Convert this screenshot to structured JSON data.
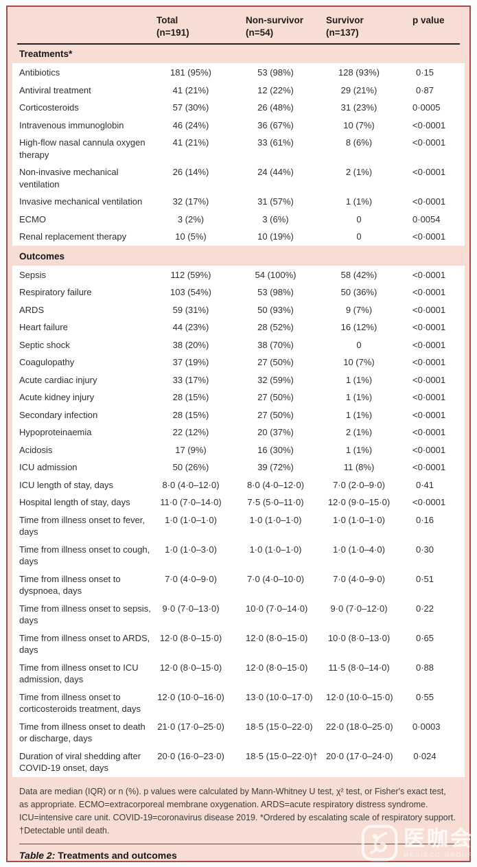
{
  "colors": {
    "frame_border": "#a64c44",
    "band_pink": "#f8ddd4",
    "body_bg": "#ffffff",
    "header_rule": "#20201e",
    "text": "#2e2e2e"
  },
  "table": {
    "columns": [
      {
        "label": "Total",
        "sub": "(n=191)"
      },
      {
        "label": "Non-survivor",
        "sub": "(n=54)"
      },
      {
        "label": "Survivor",
        "sub": "(n=137)"
      },
      {
        "label": "p value",
        "sub": ""
      }
    ],
    "sections": [
      {
        "title": "Treatments*",
        "rows": [
          {
            "label": "Antibiotics",
            "values": [
              "181 (95%)",
              "53 (98%)",
              "128 (93%)",
              "0·15"
            ]
          },
          {
            "label": "Antiviral treatment",
            "values": [
              "41 (21%)",
              "12 (22%)",
              "29 (21%)",
              "0·87"
            ]
          },
          {
            "label": "Corticosteroids",
            "values": [
              "57 (30%)",
              "26 (48%)",
              "31 (23%)",
              "0·0005"
            ]
          },
          {
            "label": "Intravenous immunoglobin",
            "values": [
              "46 (24%)",
              "36 (67%)",
              "10 (7%)",
              "<0·0001"
            ]
          },
          {
            "label": "High-flow nasal cannula oxygen therapy",
            "values": [
              "41 (21%)",
              "33 (61%)",
              "8 (6%)",
              "<0·0001"
            ]
          },
          {
            "label": "Non-invasive mechanical ventilation",
            "values": [
              "26 (14%)",
              "24 (44%)",
              "2 (1%)",
              "<0·0001"
            ]
          },
          {
            "label": "Invasive mechanical ventilation",
            "values": [
              "32 (17%)",
              "31 (57%)",
              "1 (1%)",
              "<0·0001"
            ]
          },
          {
            "label": "ECMO",
            "values": [
              "3 (2%)",
              "3 (6%)",
              "0",
              "0·0054"
            ]
          },
          {
            "label": "Renal replacement therapy",
            "values": [
              "10 (5%)",
              "10 (19%)",
              "0",
              "<0·0001"
            ]
          }
        ]
      },
      {
        "title": "Outcomes",
        "rows": [
          {
            "label": "Sepsis",
            "values": [
              "112 (59%)",
              "54 (100%)",
              "58 (42%)",
              "<0·0001"
            ]
          },
          {
            "label": "Respiratory failure",
            "values": [
              "103 (54%)",
              "53 (98%)",
              "50 (36%)",
              "<0·0001"
            ]
          },
          {
            "label": "ARDS",
            "values": [
              "59 (31%)",
              "50 (93%)",
              "9 (7%)",
              "<0·0001"
            ]
          },
          {
            "label": "Heart failure",
            "values": [
              "44 (23%)",
              "28 (52%)",
              "16 (12%)",
              "<0·0001"
            ]
          },
          {
            "label": "Septic shock",
            "values": [
              "38 (20%)",
              "38 (70%)",
              "0",
              "<0·0001"
            ]
          },
          {
            "label": "Coagulopathy",
            "values": [
              "37 (19%)",
              "27 (50%)",
              "10 (7%)",
              "<0·0001"
            ]
          },
          {
            "label": "Acute cardiac injury",
            "values": [
              "33 (17%)",
              "32 (59%)",
              "1 (1%)",
              "<0·0001"
            ]
          },
          {
            "label": "Acute kidney injury",
            "values": [
              "28 (15%)",
              "27 (50%)",
              "1 (1%)",
              "<0·0001"
            ]
          },
          {
            "label": "Secondary infection",
            "values": [
              "28 (15%)",
              "27 (50%)",
              "1 (1%)",
              "<0·0001"
            ]
          },
          {
            "label": "Hypoproteinaemia",
            "values": [
              "22 (12%)",
              "20 (37%)",
              "2 (1%)",
              "<0·0001"
            ]
          },
          {
            "label": "Acidosis",
            "values": [
              "17 (9%)",
              "16 (30%)",
              "1 (1%)",
              "<0·0001"
            ]
          },
          {
            "label": "ICU admission",
            "values": [
              "50 (26%)",
              "39 (72%)",
              "11 (8%)",
              "<0·0001"
            ]
          },
          {
            "label": "ICU length of stay, days",
            "values": [
              "8·0 (4·0–12·0)",
              "8·0 (4·0–12·0)",
              "7·0 (2·0–9·0)",
              "0·41"
            ]
          },
          {
            "label": "Hospital length of stay, days",
            "values": [
              "11·0 (7·0–14·0)",
              "7·5 (5·0–11·0)",
              "12·0 (9·0–15·0)",
              "<0·0001"
            ]
          },
          {
            "label": "Time from illness onset to fever, days",
            "values": [
              "1·0 (1·0–1·0)",
              "1·0 (1·0–1·0)",
              "1·0 (1·0–1·0)",
              "0·16"
            ]
          },
          {
            "label": "Time from illness onset to cough, days",
            "values": [
              "1·0 (1·0–3·0)",
              "1·0 (1·0–1·0)",
              "1·0 (1·0–4·0)",
              "0·30"
            ]
          },
          {
            "label": "Time from illness onset to dyspnoea, days",
            "values": [
              "7·0 (4·0–9·0)",
              "7·0 (4·0–10·0)",
              "7·0 (4·0–9·0)",
              "0·51"
            ]
          },
          {
            "label": "Time from illness onset to sepsis, days",
            "values": [
              "9·0 (7·0–13·0)",
              "10·0 (7·0–14·0)",
              "9·0 (7·0–12·0)",
              "0·22"
            ]
          },
          {
            "label": "Time from illness onset to ARDS, days",
            "values": [
              "12·0 (8·0–15·0)",
              "12·0 (8·0–15·0)",
              "10·0 (8·0–13·0)",
              "0·65"
            ]
          },
          {
            "label": "Time from illness onset to ICU admission, days",
            "values": [
              "12·0 (8·0–15·0)",
              "12·0 (8·0–15·0)",
              "11·5 (8·0–14·0)",
              "0·88"
            ]
          },
          {
            "label": "Time from illness onset to corticosteroids treatment, days",
            "values": [
              "12·0 (10·0–16·0)",
              "13·0 (10·0–17·0)",
              "12·0 (10·0–15·0)",
              "0·55"
            ]
          },
          {
            "label": "Time from illness onset to death or discharge, days",
            "values": [
              "21·0 (17·0–25·0)",
              "18·5 (15·0–22·0)",
              "22·0 (18·0–25·0)",
              "0·0003"
            ]
          },
          {
            "label": "Duration of viral shedding after COVID-19 onset, days",
            "values": [
              "20·0 (16·0–23·0)",
              "18·5 (15·0–22·0)†",
              "20·0 (17·0–24·0)",
              "0·024"
            ]
          }
        ]
      }
    ],
    "footnote_lines": [
      "Data are median (IQR) or n (%). p values were calculated by Mann-Whitney U test, χ² test, or Fisher's exact test,",
      "as appropriate. ECMO=extracorporeal membrane oxygenation. ARDS=acute respiratory distress syndrome.",
      "ICU=intensive care unit. COVID-19=coronavirus disease 2019. *Ordered by escalating scale of respiratory support.",
      "†Detectable until death."
    ],
    "caption_label": "Table 2:",
    "caption_text": "Treatments and outcomes"
  },
  "watermark": {
    "cjk": "医咖会",
    "sub": "MEDIECO GROUP"
  }
}
